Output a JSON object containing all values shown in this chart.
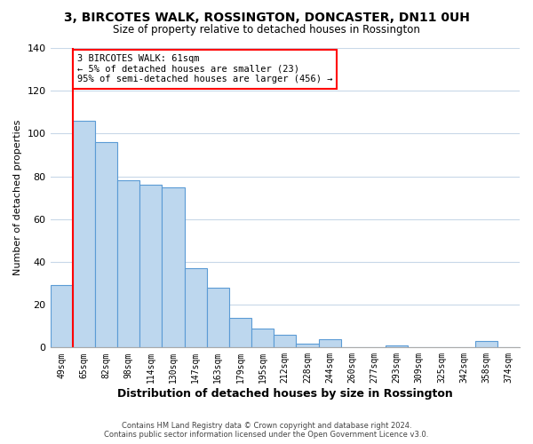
{
  "title": "3, BIRCOTES WALK, ROSSINGTON, DONCASTER, DN11 0UH",
  "subtitle": "Size of property relative to detached houses in Rossington",
  "xlabel": "Distribution of detached houses by size in Rossington",
  "ylabel": "Number of detached properties",
  "footer_line1": "Contains HM Land Registry data © Crown copyright and database right 2024.",
  "footer_line2": "Contains public sector information licensed under the Open Government Licence v3.0.",
  "bin_labels": [
    "49sqm",
    "65sqm",
    "82sqm",
    "98sqm",
    "114sqm",
    "130sqm",
    "147sqm",
    "163sqm",
    "179sqm",
    "195sqm",
    "212sqm",
    "228sqm",
    "244sqm",
    "260sqm",
    "277sqm",
    "293sqm",
    "309sqm",
    "325sqm",
    "342sqm",
    "358sqm",
    "374sqm"
  ],
  "bar_heights": [
    29,
    106,
    96,
    78,
    76,
    75,
    37,
    28,
    14,
    9,
    6,
    2,
    4,
    0,
    0,
    1,
    0,
    0,
    0,
    3,
    0
  ],
  "bar_color": "#bdd7ee",
  "bar_edge_color": "#5b9bd5",
  "annotation_box_text": "3 BIRCOTES WALK: 61sqm\n← 5% of detached houses are smaller (23)\n95% of semi-detached houses are larger (456) →",
  "annotation_box_color": "white",
  "annotation_box_edge_color": "red",
  "vertical_line_color": "red",
  "ylim": [
    0,
    140
  ],
  "yticks": [
    0,
    20,
    40,
    60,
    80,
    100,
    120,
    140
  ],
  "grid_color": "#c8d8e8",
  "background_color": "#ffffff"
}
